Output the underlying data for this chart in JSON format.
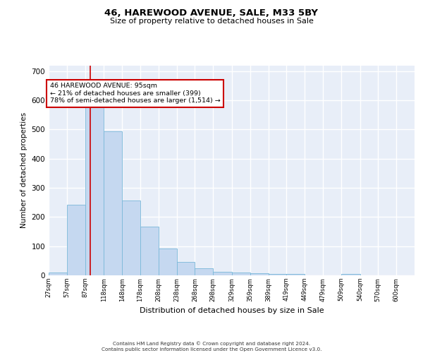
{
  "title": "46, HAREWOOD AVENUE, SALE, M33 5BY",
  "subtitle": "Size of property relative to detached houses in Sale",
  "xlabel": "Distribution of detached houses by size in Sale",
  "ylabel": "Number of detached properties",
  "bar_color": "#c5d8f0",
  "bar_edge_color": "#7ab8d9",
  "bg_color": "#e8eef8",
  "grid_color": "#ffffff",
  "annotation_box_color": "#cc0000",
  "property_line_color": "#cc0000",
  "property_value": 95,
  "annotation_text_line1": "46 HAREWOOD AVENUE: 95sqm",
  "annotation_text_line2": "← 21% of detached houses are smaller (399)",
  "annotation_text_line3": "78% of semi-detached houses are larger (1,514) →",
  "footer_line1": "Contains HM Land Registry data © Crown copyright and database right 2024.",
  "footer_line2": "Contains public sector information licensed under the Open Government Licence v3.0.",
  "bins": [
    27,
    57,
    87,
    118,
    148,
    178,
    208,
    238,
    268,
    298,
    329,
    359,
    389,
    419,
    449,
    479,
    509,
    540,
    570,
    600,
    630
  ],
  "counts": [
    10,
    243,
    575,
    493,
    257,
    168,
    91,
    47,
    24,
    12,
    10,
    8,
    5,
    4,
    1,
    0,
    4,
    0,
    0,
    0
  ],
  "ylim": [
    0,
    720
  ],
  "yticks": [
    0,
    100,
    200,
    300,
    400,
    500,
    600,
    700
  ]
}
